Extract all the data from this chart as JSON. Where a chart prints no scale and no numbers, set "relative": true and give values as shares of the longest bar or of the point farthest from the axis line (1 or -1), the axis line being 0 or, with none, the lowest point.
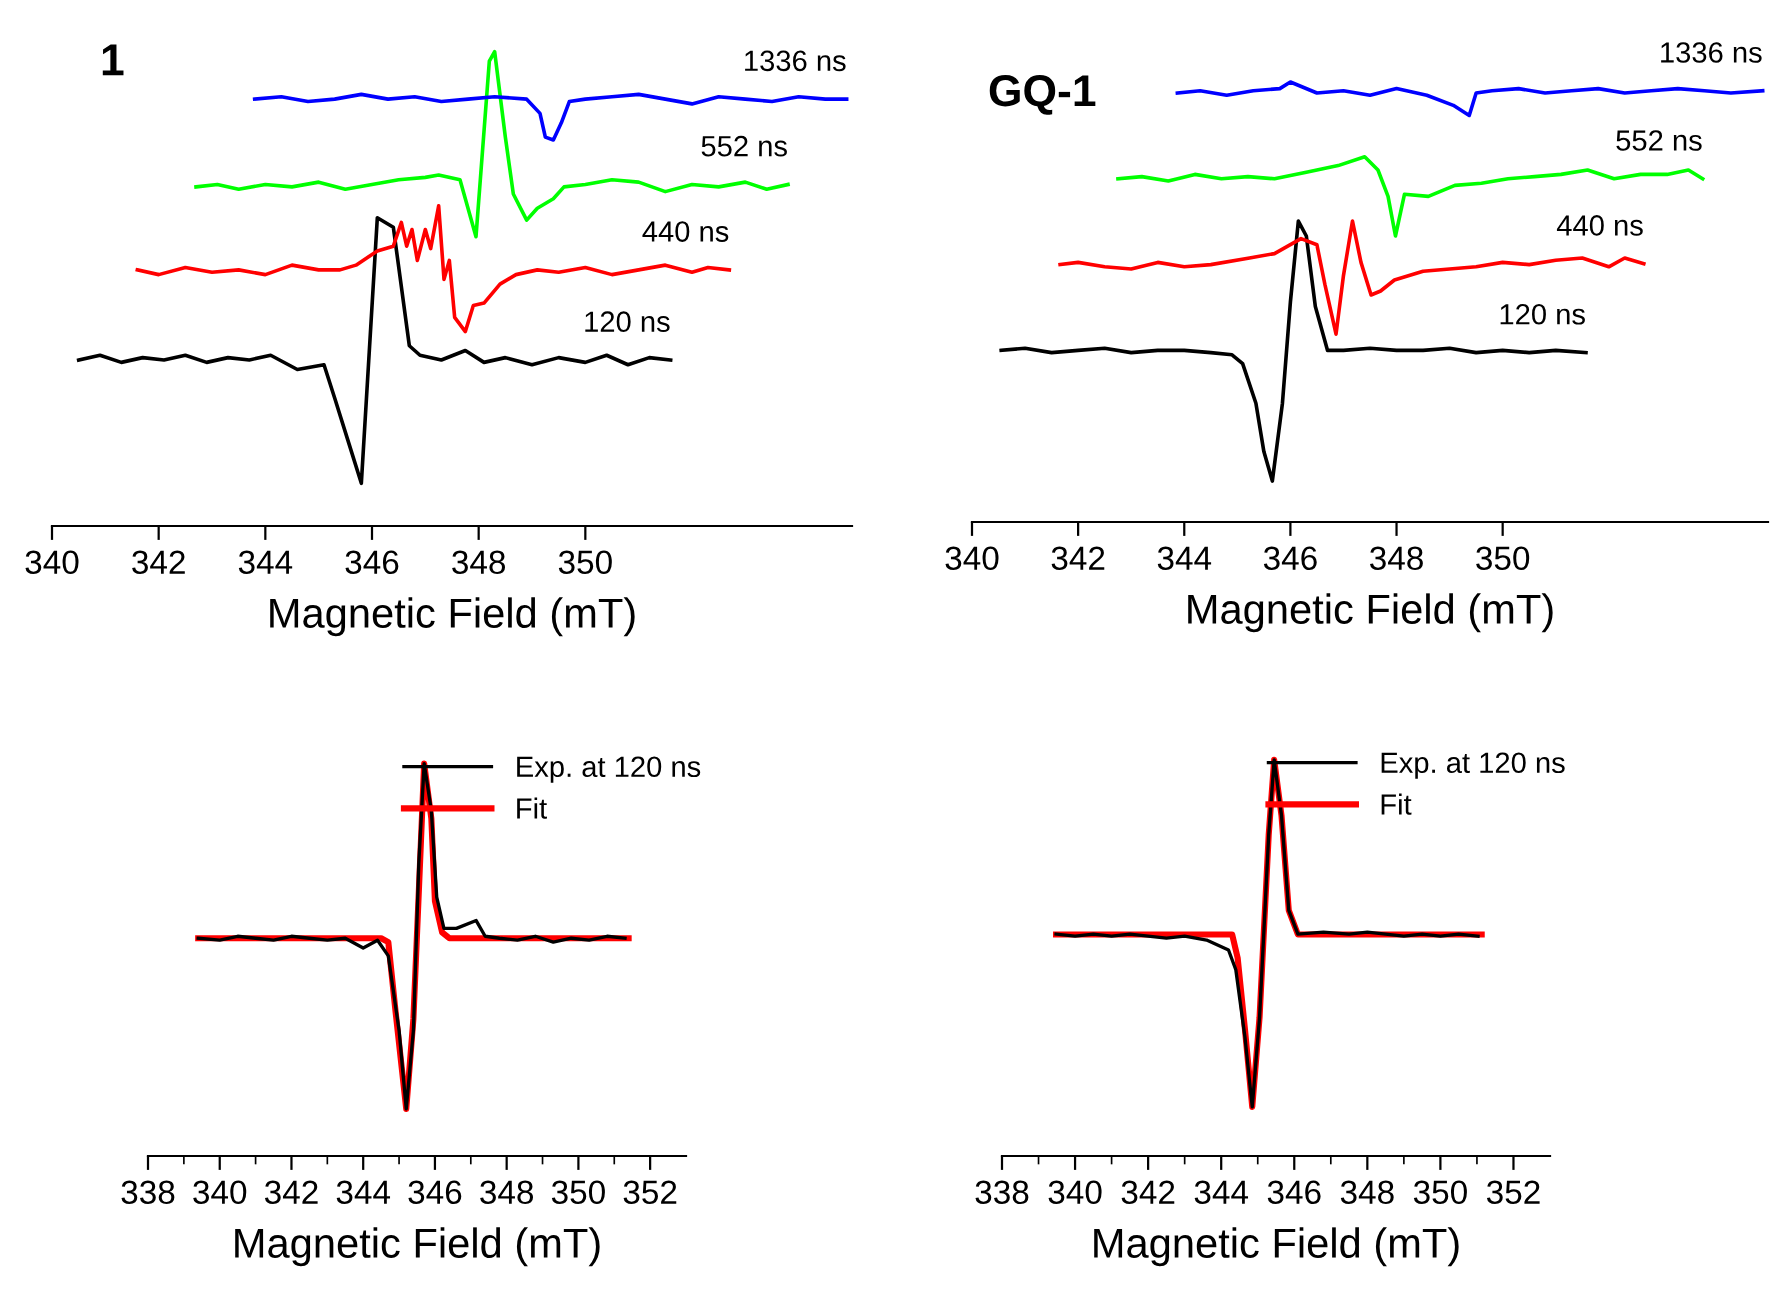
{
  "chart_data": [
    {
      "type": "line",
      "title": "1",
      "xlabel": "Magnetic Field (mT)",
      "relative": true,
      "legend": false,
      "grid": false,
      "marker": "none",
      "line_style": "solid",
      "xlim": [
        340,
        355
      ],
      "xticks": [
        340,
        342,
        344,
        346,
        348,
        350
      ],
      "series": [
        {
          "name": "120 ns",
          "color": "#000000",
          "x": [
            340.5,
            340.9,
            341.3,
            341.7,
            342.1,
            342.5,
            342.9,
            343.3,
            343.7,
            344.1,
            344.6,
            345.1,
            345.3,
            345.55,
            345.8,
            346.1,
            346.4,
            346.7,
            346.9,
            347.3,
            347.75,
            348.1,
            348.5,
            349.0,
            349.5,
            350.0,
            350.4,
            350.8,
            351.2,
            351.6
          ],
          "values": [
            0.35,
            0.36,
            0.345,
            0.355,
            0.35,
            0.36,
            0.345,
            0.355,
            0.35,
            0.36,
            0.33,
            0.34,
            0.27,
            0.18,
            0.09,
            0.65,
            0.63,
            0.38,
            0.36,
            0.35,
            0.37,
            0.345,
            0.355,
            0.34,
            0.355,
            0.345,
            0.36,
            0.34,
            0.355,
            0.35
          ]
        },
        {
          "name": "440 ns",
          "color": "#ff0000",
          "x": [
            341.6,
            342.0,
            342.5,
            343.0,
            343.5,
            344.0,
            344.5,
            345.0,
            345.4,
            345.7,
            346.1,
            346.4,
            346.55,
            346.65,
            346.75,
            346.85,
            347.0,
            347.1,
            347.25,
            347.35,
            347.45,
            347.55,
            347.75,
            347.9,
            348.1,
            348.4,
            348.7,
            349.1,
            349.5,
            350.0,
            350.5,
            351.0,
            351.5,
            352.0,
            352.3,
            352.7
          ],
          "values": [
            0.54,
            0.53,
            0.545,
            0.535,
            0.54,
            0.53,
            0.55,
            0.54,
            0.54,
            0.55,
            0.58,
            0.59,
            0.64,
            0.59,
            0.625,
            0.56,
            0.625,
            0.585,
            0.675,
            0.52,
            0.56,
            0.44,
            0.41,
            0.465,
            0.47,
            0.51,
            0.53,
            0.54,
            0.535,
            0.545,
            0.53,
            0.54,
            0.55,
            0.535,
            0.545,
            0.54
          ]
        },
        {
          "name": "552 ns",
          "color": "#00ff00",
          "x": [
            342.7,
            343.1,
            343.5,
            344.0,
            344.5,
            345.0,
            345.5,
            346.0,
            346.5,
            347.0,
            347.25,
            347.65,
            347.75,
            347.95,
            348.2,
            348.3,
            348.5,
            348.65,
            348.9,
            349.1,
            349.4,
            349.6,
            350.0,
            350.5,
            351.0,
            351.5,
            352.0,
            352.5,
            353.0,
            353.4,
            353.8
          ],
          "values": [
            0.715,
            0.72,
            0.71,
            0.72,
            0.715,
            0.725,
            0.71,
            0.72,
            0.73,
            0.735,
            0.74,
            0.73,
            0.69,
            0.61,
            0.98,
            1.0,
            0.82,
            0.7,
            0.645,
            0.67,
            0.69,
            0.715,
            0.72,
            0.73,
            0.725,
            0.705,
            0.72,
            0.715,
            0.725,
            0.71,
            0.72
          ]
        },
        {
          "name": "1336 ns",
          "color": "#0000ff",
          "x": [
            343.8,
            344.3,
            344.8,
            345.3,
            345.8,
            346.3,
            346.8,
            347.3,
            347.8,
            348.3,
            348.9,
            349.15,
            349.25,
            349.4,
            349.55,
            349.7,
            350.0,
            350.5,
            351.0,
            351.5,
            352.0,
            352.5,
            353.0,
            353.5,
            354.0,
            354.5,
            354.9
          ],
          "values": [
            0.9,
            0.905,
            0.895,
            0.9,
            0.91,
            0.9,
            0.905,
            0.895,
            0.9,
            0.905,
            0.9,
            0.87,
            0.82,
            0.814,
            0.85,
            0.895,
            0.9,
            0.905,
            0.91,
            0.9,
            0.89,
            0.905,
            0.9,
            0.895,
            0.905,
            0.9,
            0.9
          ]
        }
      ]
    },
    {
      "type": "line",
      "title": "GQ-1",
      "xlabel": "Magnetic Field (mT)",
      "relative": true,
      "legend": false,
      "grid": false,
      "marker": "none",
      "line_style": "solid",
      "xlim": [
        340,
        355
      ],
      "xticks": [
        340,
        342,
        344,
        346,
        348,
        350
      ],
      "series": [
        {
          "name": "120 ns",
          "color": "#000000",
          "x": [
            340.55,
            341.0,
            341.5,
            342.0,
            342.5,
            343.0,
            343.5,
            344.0,
            344.5,
            344.9,
            345.1,
            345.35,
            345.5,
            345.66,
            345.85,
            346.0,
            346.15,
            346.3,
            346.47,
            346.7,
            347.0,
            347.5,
            348.0,
            348.5,
            349.0,
            349.5,
            350.0,
            350.5,
            351.0,
            351.57
          ],
          "values": [
            0.39,
            0.395,
            0.385,
            0.39,
            0.395,
            0.385,
            0.39,
            0.39,
            0.385,
            0.38,
            0.36,
            0.27,
            0.16,
            0.093,
            0.27,
            0.5,
            0.684,
            0.65,
            0.49,
            0.39,
            0.39,
            0.395,
            0.39,
            0.39,
            0.395,
            0.385,
            0.39,
            0.385,
            0.39,
            0.385
          ]
        },
        {
          "name": "440 ns",
          "color": "#ff0000",
          "x": [
            341.66,
            342.0,
            342.5,
            343.0,
            343.5,
            344.0,
            344.5,
            345.23,
            345.7,
            346.2,
            346.5,
            346.65,
            346.86,
            347.0,
            347.17,
            347.33,
            347.52,
            347.7,
            347.96,
            348.5,
            349.0,
            349.5,
            350.0,
            350.5,
            351.0,
            351.5,
            352.0,
            352.3,
            352.66
          ],
          "values": [
            0.585,
            0.59,
            0.58,
            0.575,
            0.59,
            0.58,
            0.585,
            0.6,
            0.61,
            0.644,
            0.63,
            0.54,
            0.427,
            0.56,
            0.684,
            0.59,
            0.516,
            0.525,
            0.55,
            0.57,
            0.575,
            0.58,
            0.59,
            0.585,
            0.595,
            0.6,
            0.58,
            0.6,
            0.587
          ]
        },
        {
          "name": "552 ns",
          "color": "#00ff00",
          "x": [
            342.75,
            343.2,
            343.7,
            344.2,
            344.7,
            345.2,
            345.7,
            346.3,
            346.9,
            347.4,
            347.65,
            347.84,
            347.98,
            348.15,
            348.6,
            349.1,
            349.6,
            350.1,
            350.6,
            351.1,
            351.6,
            352.1,
            352.6,
            353.1,
            353.5,
            353.77
          ],
          "values": [
            0.78,
            0.785,
            0.775,
            0.79,
            0.78,
            0.785,
            0.78,
            0.795,
            0.81,
            0.83,
            0.8,
            0.74,
            0.65,
            0.745,
            0.74,
            0.765,
            0.77,
            0.78,
            0.785,
            0.79,
            0.8,
            0.78,
            0.79,
            0.79,
            0.8,
            0.78
          ]
        },
        {
          "name": "1336 ns",
          "color": "#0000ff",
          "x": [
            343.87,
            344.3,
            344.8,
            345.3,
            345.8,
            346.0,
            346.5,
            347.0,
            347.5,
            348.0,
            348.57,
            349.07,
            349.37,
            349.5,
            349.8,
            350.3,
            350.8,
            351.3,
            351.8,
            352.3,
            352.8,
            353.3,
            353.8,
            354.3,
            354.9
          ],
          "values": [
            0.975,
            0.98,
            0.97,
            0.98,
            0.985,
            1.0,
            0.975,
            0.98,
            0.97,
            0.985,
            0.97,
            0.947,
            0.924,
            0.975,
            0.98,
            0.985,
            0.975,
            0.98,
            0.985,
            0.975,
            0.98,
            0.985,
            0.98,
            0.975,
            0.98
          ]
        }
      ]
    },
    {
      "type": "line",
      "xlabel": "Magnetic Field (mT)",
      "relative": true,
      "legend": "top right",
      "grid": false,
      "marker": "none",
      "line_style": "solid",
      "xlim": [
        338,
        353
      ],
      "xticks": [
        338,
        {
          "value": 339,
          "label": null
        },
        340,
        {
          "value": 341,
          "label": null
        },
        342,
        {
          "value": 343,
          "label": null
        },
        344,
        {
          "value": 345,
          "label": null
        },
        346,
        {
          "value": 347,
          "label": null
        },
        348,
        {
          "value": 349,
          "label": null
        },
        350,
        {
          "value": 351,
          "label": null
        },
        352
      ],
      "series": [
        {
          "name": "Exp. at 120 ns",
          "color": "#000000",
          "x": [
            339.4,
            340.0,
            340.5,
            341.0,
            341.5,
            342.0,
            342.5,
            343.0,
            343.5,
            344.0,
            344.4,
            344.7,
            345.0,
            345.2,
            345.4,
            345.55,
            345.7,
            345.9,
            346.05,
            346.25,
            346.6,
            347.15,
            347.4,
            347.8,
            348.3,
            348.8,
            349.3,
            349.8,
            350.3,
            350.8,
            351.3
          ],
          "values": [
            0.555,
            0.55,
            0.56,
            0.555,
            0.55,
            0.56,
            0.555,
            0.55,
            0.555,
            0.53,
            0.55,
            0.51,
            0.32,
            0.12,
            0.32,
            0.745,
            1.0,
            0.88,
            0.66,
            0.58,
            0.58,
            0.6,
            0.56,
            0.555,
            0.55,
            0.56,
            0.545,
            0.555,
            0.55,
            0.56,
            0.555
          ]
        },
        {
          "name": "Fit",
          "color": "#ff0000",
          "x": [
            339.4,
            344.5,
            344.7,
            344.9,
            345.2,
            345.4,
            345.6,
            345.7,
            345.9,
            346.0,
            346.2,
            346.4,
            351.4
          ],
          "values": [
            0.555,
            0.555,
            0.545,
            0.37,
            0.12,
            0.35,
            0.78,
            1.0,
            0.86,
            0.65,
            0.57,
            0.555,
            0.555
          ]
        }
      ]
    },
    {
      "type": "line",
      "xlabel": "Magnetic Field (mT)",
      "relative": true,
      "legend": "top right",
      "grid": false,
      "marker": "none",
      "line_style": "solid",
      "xlim": [
        338,
        353
      ],
      "xticks": [
        338,
        {
          "value": 339,
          "label": null
        },
        340,
        {
          "value": 341,
          "label": null
        },
        342,
        {
          "value": 343,
          "label": null
        },
        344,
        {
          "value": 345,
          "label": null
        },
        346,
        {
          "value": 347,
          "label": null
        },
        348,
        {
          "value": 349,
          "label": null
        },
        350,
        {
          "value": 351,
          "label": null
        },
        352
      ],
      "series": [
        {
          "name": "Exp. at 120 ns",
          "color": "#000000",
          "x": [
            339.48,
            340.0,
            340.5,
            341.0,
            341.5,
            342.0,
            342.5,
            343.0,
            343.6,
            344.2,
            344.4,
            344.65,
            344.85,
            345.05,
            345.3,
            345.45,
            345.65,
            345.85,
            346.1,
            346.8,
            347.5,
            348.0,
            348.5,
            349.0,
            349.5,
            350.0,
            350.5,
            351.03
          ],
          "values": [
            0.56,
            0.555,
            0.56,
            0.555,
            0.56,
            0.555,
            0.55,
            0.555,
            0.545,
            0.52,
            0.47,
            0.3,
            0.124,
            0.35,
            0.81,
            1.0,
            0.86,
            0.62,
            0.56,
            0.565,
            0.56,
            0.565,
            0.56,
            0.555,
            0.56,
            0.555,
            0.56,
            0.555
          ]
        },
        {
          "name": "Fit",
          "color": "#ff0000",
          "x": [
            339.48,
            344.3,
            344.45,
            344.65,
            344.85,
            345.05,
            345.3,
            345.45,
            345.65,
            345.85,
            346.1,
            351.13
          ],
          "values": [
            0.559,
            0.559,
            0.5,
            0.32,
            0.124,
            0.35,
            0.81,
            1.0,
            0.86,
            0.62,
            0.559,
            0.559
          ]
        }
      ]
    }
  ]
}
